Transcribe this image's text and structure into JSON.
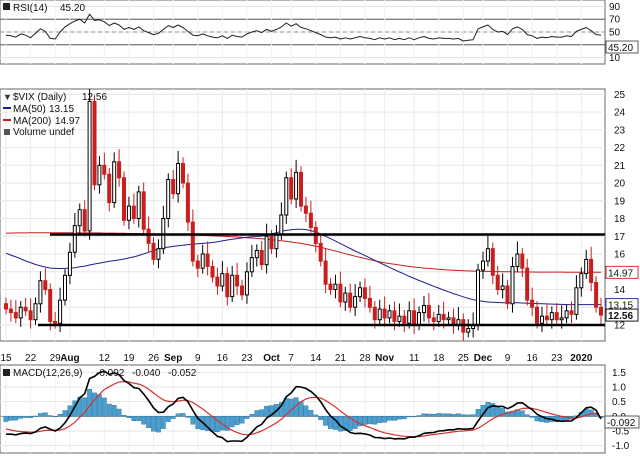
{
  "rsi_panel": {
    "legend_label": "RSI(14)",
    "legend_value": "45.20",
    "current_badge": "45.20",
    "ticks": [
      90,
      70,
      50,
      30,
      10
    ],
    "ylim": [
      0,
      100
    ],
    "overbought": 70,
    "midline": 50,
    "oversold": 30
  },
  "price_panel": {
    "title": "$VIX (Daily)",
    "title_value": "12.56",
    "legend": [
      {
        "name": "MA(50)",
        "value": "13.15",
        "color": "#1f1f8f"
      },
      {
        "name": "MA(200)",
        "value": "14.97",
        "color": "#c81e1e"
      },
      {
        "name": "Volume undef",
        "value": "",
        "color": "#555555"
      }
    ],
    "badges": [
      {
        "text": "14.97",
        "value": 14.97,
        "color": "#c81e1e"
      },
      {
        "text": "13.15",
        "value": 13.15,
        "color": "#1f1f8f"
      },
      {
        "text": "12.56",
        "value": 12.56,
        "color": "#000000"
      }
    ],
    "y_ticks": [
      12,
      13,
      14,
      15,
      16,
      17,
      18,
      19,
      20,
      21,
      22,
      23,
      24,
      25
    ],
    "ylim": [
      11.1,
      25.3
    ],
    "up_color": "#000000",
    "down_color": "#c81e1e"
  },
  "x_axis": {
    "labels": [
      {
        "text": "15",
        "i": 0,
        "bold": false
      },
      {
        "text": "22",
        "i": 5,
        "bold": false
      },
      {
        "text": "29",
        "i": 10,
        "bold": false
      },
      {
        "text": "Aug",
        "i": 13,
        "bold": true
      },
      {
        "text": "12",
        "i": 20,
        "bold": false
      },
      {
        "text": "19",
        "i": 25,
        "bold": false
      },
      {
        "text": "26",
        "i": 30,
        "bold": false
      },
      {
        "text": "Sep",
        "i": 34,
        "bold": true
      },
      {
        "text": "9",
        "i": 39,
        "bold": false
      },
      {
        "text": "16",
        "i": 44,
        "bold": false
      },
      {
        "text": "23",
        "i": 49,
        "bold": false
      },
      {
        "text": "Oct",
        "i": 54,
        "bold": true
      },
      {
        "text": "7",
        "i": 58,
        "bold": false
      },
      {
        "text": "14",
        "i": 63,
        "bold": false
      },
      {
        "text": "21",
        "i": 68,
        "bold": false
      },
      {
        "text": "28",
        "i": 73,
        "bold": false
      },
      {
        "text": "Nov",
        "i": 77,
        "bold": true
      },
      {
        "text": "11",
        "i": 83,
        "bold": false
      },
      {
        "text": "18",
        "i": 88,
        "bold": false
      },
      {
        "text": "25",
        "i": 93,
        "bold": false
      },
      {
        "text": "Dec",
        "i": 97,
        "bold": true
      },
      {
        "text": "9",
        "i": 102,
        "bold": false
      },
      {
        "text": "16",
        "i": 107,
        "bold": false
      },
      {
        "text": "23",
        "i": 112,
        "bold": false
      },
      {
        "text": "2020",
        "i": 117,
        "bold": true
      }
    ]
  },
  "macd_panel": {
    "legend_label": "MACD(12,26,9)",
    "macd_value": "-0.092",
    "signal_value": "-0.040",
    "hist_value": "-0.052",
    "current_badge": "-0.092",
    "ticks": [
      1.5,
      1.0,
      0.5,
      0.0,
      -0.5,
      -1.0
    ],
    "tick_labels": [
      "1.5",
      "1.0",
      "0.5",
      "0.0",
      "-0.5",
      "-1.0"
    ],
    "ylim": [
      -1.25,
      1.75
    ]
  },
  "chart_data": {
    "type": "candlestick",
    "title": "$VIX (Daily)",
    "ylabel": "",
    "xlabel": "",
    "ylim": [
      11.1,
      25.3
    ],
    "trading_days": 122,
    "support_line": 12.0,
    "resistance_line": 17.1,
    "close": [
      12.9,
      12.7,
      12.4,
      13.0,
      12.8,
      12.3,
      13.2,
      14.5,
      14.0,
      12.2,
      12.1,
      13.4,
      14.8,
      16.1,
      17.6,
      18.5,
      17.3,
      24.6,
      19.9,
      21.0,
      20.5,
      18.9,
      21.2,
      20.3,
      17.9,
      18.7,
      18.0,
      19.5,
      17.4,
      16.6,
      15.7,
      16.3,
      18.0,
      20.2,
      19.4,
      21.1,
      20.0,
      17.8,
      15.6,
      15.2,
      16.0,
      15.3,
      14.7,
      14.2,
      14.9,
      13.6,
      14.8,
      14.2,
      13.7,
      15.0,
      15.8,
      16.2,
      15.4,
      17.0,
      16.3,
      17.1,
      18.2,
      20.3,
      19.1,
      20.6,
      18.7,
      18.3,
      17.5,
      16.6,
      15.6,
      14.3,
      14.0,
      14.3,
      13.3,
      13.8,
      13.0,
      13.6,
      14.1,
      13.5,
      13.0,
      12.3,
      12.9,
      12.4,
      12.8,
      12.2,
      12.5,
      12.1,
      12.8,
      12.0,
      12.7,
      13.1,
      12.4,
      12.2,
      12.6,
      12.3,
      12.4,
      12.0,
      12.3,
      11.6,
      11.8,
      12.0,
      15.1,
      15.6,
      16.3,
      14.8,
      14.0,
      14.2,
      13.2,
      15.3,
      16.0,
      15.2,
      13.4,
      13.0,
      12.1,
      12.5,
      12.3,
      12.7,
      12.3,
      12.4,
      12.8,
      12.6,
      14.1,
      14.9,
      15.7,
      14.4,
      13.0,
      12.56
    ],
    "ma50": [
      16.05,
      15.94,
      15.84,
      15.73,
      15.61,
      15.52,
      15.41,
      15.33,
      15.27,
      15.21,
      15.19,
      15.18,
      15.19,
      15.21,
      15.23,
      15.28,
      15.32,
      15.38,
      15.44,
      15.49,
      15.54,
      15.59,
      15.63,
      15.67,
      15.72,
      15.78,
      15.84,
      15.92,
      16.01,
      16.1,
      16.2,
      16.28,
      16.35,
      16.39,
      16.43,
      16.47,
      16.5,
      16.53,
      16.55,
      16.58,
      16.6,
      16.62,
      16.65,
      16.69,
      16.74,
      16.79,
      16.83,
      16.87,
      16.91,
      16.95,
      16.98,
      16.99,
      17.01,
      17.06,
      17.13,
      17.2,
      17.28,
      17.33,
      17.37,
      17.4,
      17.4,
      17.38,
      17.32,
      17.24,
      17.13,
      17.0,
      16.87,
      16.73,
      16.59,
      16.45,
      16.31,
      16.17,
      16.05,
      15.91,
      15.78,
      15.65,
      15.51,
      15.38,
      15.25,
      15.12,
      14.99,
      14.87,
      14.74,
      14.63,
      14.51,
      14.4,
      14.29,
      14.18,
      14.08,
      13.97,
      13.87,
      13.77,
      13.68,
      13.59,
      13.5,
      13.43,
      13.38,
      13.33,
      13.3,
      13.28,
      13.27,
      13.26,
      13.25,
      13.25,
      13.25,
      13.24,
      13.23,
      13.22,
      13.21,
      13.2,
      13.19,
      13.18,
      13.17,
      13.16,
      13.15,
      13.15,
      13.15,
      13.15,
      13.15,
      13.15,
      13.15,
      13.15
    ],
    "ma200": [
      17.18,
      17.18,
      17.19,
      17.19,
      17.19,
      17.2,
      17.2,
      17.2,
      17.2,
      17.2,
      17.2,
      17.2,
      17.2,
      17.2,
      17.2,
      17.19,
      17.19,
      17.19,
      17.19,
      17.19,
      17.18,
      17.18,
      17.18,
      17.17,
      17.17,
      17.16,
      17.16,
      17.15,
      17.15,
      17.14,
      17.14,
      17.13,
      17.12,
      17.12,
      17.11,
      17.1,
      17.09,
      17.08,
      17.07,
      17.06,
      17.05,
      17.04,
      17.03,
      17.01,
      17.0,
      16.99,
      16.97,
      16.96,
      16.94,
      16.92,
      16.9,
      16.88,
      16.86,
      16.83,
      16.81,
      16.78,
      16.75,
      16.72,
      16.68,
      16.64,
      16.6,
      16.55,
      16.5,
      16.44,
      16.38,
      16.31,
      16.24,
      16.17,
      16.1,
      16.02,
      15.95,
      15.88,
      15.81,
      15.75,
      15.68,
      15.62,
      15.56,
      15.51,
      15.46,
      15.42,
      15.38,
      15.34,
      15.3,
      15.27,
      15.24,
      15.21,
      15.19,
      15.16,
      15.14,
      15.12,
      15.1,
      15.09,
      15.07,
      15.06,
      15.05,
      15.04,
      15.03,
      15.02,
      15.02,
      15.01,
      15.01,
      15.0,
      15.0,
      15.0,
      14.99,
      14.99,
      14.99,
      14.99,
      14.98,
      14.98,
      14.98,
      14.98,
      14.98,
      14.98,
      14.97,
      14.97,
      14.97,
      14.97,
      14.97,
      14.97,
      14.97,
      14.97
    ],
    "rsi": [
      45.0,
      44.0,
      42.0,
      47.0,
      45.0,
      41.0,
      48.0,
      55.0,
      51.0,
      40.0,
      39.0,
      50.0,
      58.0,
      63.0,
      67.0,
      70.0,
      64.0,
      78.0,
      68.0,
      69.0,
      66.0,
      60.0,
      64.0,
      61.0,
      54.0,
      57.0,
      54.0,
      58.0,
      52.0,
      49.0,
      46.0,
      48.0,
      54.0,
      60.0,
      57.0,
      61.0,
      57.0,
      51.0,
      45.0,
      44.0,
      47.0,
      44.0,
      42.0,
      41.0,
      44.0,
      40.0,
      45.0,
      43.0,
      42.0,
      47.0,
      50.0,
      52.0,
      49.0,
      54.0,
      51.0,
      54.0,
      58.0,
      64.0,
      59.0,
      63.0,
      57.0,
      55.0,
      52.0,
      49.0,
      46.0,
      42.0,
      41.0,
      42.0,
      39.0,
      41.0,
      39.0,
      41.0,
      43.0,
      41.0,
      40.0,
      38.0,
      41.0,
      39.0,
      41.0,
      38.0,
      40.0,
      38.0,
      41.0,
      38.0,
      41.0,
      43.0,
      40.0,
      39.0,
      41.0,
      40.0,
      40.0,
      39.0,
      40.0,
      36.0,
      37.0,
      38.0,
      55.0,
      58.0,
      61.0,
      54.0,
      50.0,
      51.0,
      46.0,
      55.0,
      58.0,
      54.0,
      46.0,
      44.0,
      40.0,
      42.0,
      41.0,
      43.0,
      42.0,
      42.0,
      44.0,
      43.0,
      51.0,
      54.0,
      57.0,
      52.0,
      46.0,
      45.2
    ],
    "macd": [
      -0.61,
      -0.61,
      -0.63,
      -0.59,
      -0.57,
      -0.59,
      -0.53,
      -0.41,
      -0.36,
      -0.44,
      -0.5,
      -0.4,
      -0.22,
      0.03,
      0.33,
      0.63,
      0.77,
      1.29,
      1.36,
      1.49,
      1.54,
      1.43,
      1.48,
      1.42,
      1.22,
      1.12,
      0.98,
      0.95,
      0.76,
      0.54,
      0.29,
      0.13,
      0.14,
      0.33,
      0.42,
      0.61,
      0.65,
      0.5,
      0.2,
      -0.07,
      -0.21,
      -0.37,
      -0.53,
      -0.68,
      -0.73,
      -0.86,
      -0.84,
      -0.84,
      -0.85,
      -0.71,
      -0.54,
      -0.36,
      -0.27,
      -0.06,
      0.05,
      0.19,
      0.37,
      0.67,
      0.8,
      1.01,
      1.0,
      0.95,
      0.85,
      0.7,
      0.5,
      0.23,
      0.01,
      -0.13,
      -0.33,
      -0.43,
      -0.55,
      -0.59,
      -0.58,
      -0.6,
      -0.64,
      -0.72,
      -0.73,
      -0.76,
      -0.74,
      -0.77,
      -0.76,
      -0.77,
      -0.71,
      -0.71,
      -0.66,
      -0.58,
      -0.56,
      -0.55,
      -0.5,
      -0.49,
      -0.46,
      -0.46,
      -0.42,
      -0.44,
      -0.43,
      -0.41,
      -0.16,
      0.07,
      0.29,
      0.36,
      0.34,
      0.34,
      0.26,
      0.34,
      0.45,
      0.46,
      0.34,
      0.23,
      0.07,
      -0.01,
      -0.08,
      -0.1,
      -0.15,
      -0.17,
      -0.16,
      -0.16,
      -0.04,
      0.12,
      0.29,
      0.31,
      0.21,
      -0.092
    ],
    "signal": [
      -0.43,
      -0.47,
      -0.5,
      -0.52,
      -0.53,
      -0.54,
      -0.54,
      -0.51,
      -0.48,
      -0.47,
      -0.48,
      -0.47,
      -0.42,
      -0.33,
      -0.2,
      -0.03,
      0.13,
      0.36,
      0.56,
      0.75,
      0.91,
      1.01,
      1.1,
      1.17,
      1.18,
      1.17,
      1.13,
      1.1,
      1.03,
      0.93,
      0.8,
      0.67,
      0.56,
      0.51,
      0.5,
      0.52,
      0.55,
      0.54,
      0.47,
      0.36,
      0.25,
      0.12,
      -0.01,
      -0.15,
      -0.26,
      -0.38,
      -0.48,
      -0.55,
      -0.61,
      -0.63,
      -0.61,
      -0.56,
      -0.5,
      -0.41,
      -0.32,
      -0.22,
      -0.1,
      0.06,
      0.21,
      0.37,
      0.5,
      0.59,
      0.64,
      0.65,
      0.62,
      0.54,
      0.43,
      0.32,
      0.18,
      0.06,
      -0.06,
      -0.17,
      -0.25,
      -0.32,
      -0.38,
      -0.45,
      -0.51,
      -0.56,
      -0.6,
      -0.63,
      -0.66,
      -0.68,
      -0.69,
      -0.69,
      -0.69,
      -0.67,
      -0.64,
      -0.62,
      -0.6,
      -0.58,
      -0.55,
      -0.53,
      -0.51,
      -0.5,
      -0.48,
      -0.47,
      -0.4,
      -0.31,
      -0.19,
      -0.08,
      0.0,
      0.07,
      0.11,
      0.16,
      0.22,
      0.27,
      0.28,
      0.27,
      0.23,
      0.18,
      0.13,
      0.08,
      0.04,
      0.0,
      -0.03,
      -0.06,
      -0.06,
      -0.02,
      0.04,
      0.09,
      0.11,
      -0.04
    ]
  }
}
